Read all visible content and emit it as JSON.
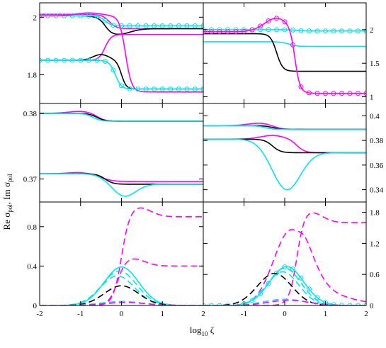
{
  "figure": {
    "xlabel": {
      "base": "log",
      "sub": "10",
      "var": " ζ"
    },
    "ylabel": {
      "re": "Re σ",
      "re_sub": "pol",
      "sep": ", Im σ",
      "im_sub": "pol"
    }
  },
  "chart_data": [
    {
      "id": "top-left",
      "type": "line",
      "xlim": [
        -2,
        2
      ],
      "ylim": [
        1.7,
        2.05
      ],
      "xticks": [
        -2,
        -1,
        0,
        1,
        2
      ],
      "yticks": [
        1.8,
        2
      ],
      "ytick_labels": [
        "1.8",
        "2"
      ],
      "ytick_side": "left",
      "curves": [
        {
          "color": "magenta",
          "dash": false,
          "markers": false,
          "y0": 2.01,
          "y1": 1.96,
          "center": -0.3,
          "width": 0.18
        },
        {
          "color": "black",
          "dash": false,
          "markers": false,
          "y0": 2.005,
          "y1": 1.96,
          "center": -0.4,
          "width": 0.15,
          "dip": -0.02,
          "dip_c": -0.1,
          "dip_w": 0.3
        },
        {
          "color": "cyan",
          "dash": false,
          "markers": true,
          "y0": 2.005,
          "y1": 1.97,
          "center": -0.4,
          "width": 0.15
        },
        {
          "color": "magenta",
          "dash": false,
          "markers": false,
          "y0": 1.85,
          "y1": 1.94,
          "center": -0.4,
          "width": 0.15
        },
        {
          "color": "magenta",
          "dash": false,
          "markers": false,
          "y0": 2.005,
          "y1": 1.74,
          "center": 0.1,
          "width": 0.15,
          "bump": 0.01,
          "bump_c": -0.8,
          "bump_w": 0.3
        },
        {
          "color": "black",
          "dash": false,
          "markers": false,
          "y0": 1.85,
          "y1": 1.75,
          "center": 0.0,
          "width": 0.12,
          "bump": 0.02,
          "bump_c": -0.5,
          "bump_w": 0.2
        },
        {
          "color": "cyan",
          "dash": false,
          "markers": true,
          "y0": 1.85,
          "y1": 1.75,
          "center": -0.15,
          "width": 0.15
        }
      ]
    },
    {
      "id": "top-right",
      "type": "line",
      "xlim": [
        -2,
        2
      ],
      "ylim": [
        0.9,
        2.4
      ],
      "xticks": [
        -2,
        -1,
        0,
        1,
        2
      ],
      "yticks": [
        1,
        1.5,
        2
      ],
      "ytick_labels": [
        "1",
        "1.5",
        "2"
      ],
      "ytick_side": "right",
      "curves": [
        {
          "color": "cyan",
          "dash": false,
          "markers": true,
          "y0": 2.0,
          "y1": 1.98,
          "center": 0.3,
          "width": 0.2
        },
        {
          "color": "cyan",
          "dash": false,
          "markers": false,
          "y0": 1.82,
          "y1": 1.75,
          "center": 0.1,
          "width": 0.2
        },
        {
          "color": "black",
          "dash": false,
          "markers": false,
          "y0": 1.94,
          "y1": 1.38,
          "center": -0.2,
          "width": 0.15
        },
        {
          "color": "magenta",
          "dash": false,
          "markers": true,
          "y0": 1.97,
          "y1": 1.05,
          "center": 0.25,
          "width": 0.12,
          "bump": 0.2,
          "bump_c": -0.2,
          "bump_w": 0.3
        }
      ]
    },
    {
      "id": "mid-left",
      "type": "line",
      "xlim": [
        -2,
        2
      ],
      "ylim": [
        0.3665,
        0.3815
      ],
      "xticks": [
        -2,
        -1,
        0,
        1,
        2
      ],
      "yticks": [
        0.37,
        0.38
      ],
      "ytick_labels": [
        "0.37",
        "0.38"
      ],
      "ytick_side": "left",
      "curves": [
        {
          "color": "magenta",
          "dash": false,
          "markers": false,
          "y0": 0.38,
          "y1": 0.3788,
          "center": -0.6,
          "width": 0.2,
          "bump": 0.0003,
          "bump_c": -1.0,
          "bump_w": 0.3
        },
        {
          "color": "black",
          "dash": false,
          "markers": false,
          "y0": 0.38,
          "y1": 0.3788,
          "center": -0.6,
          "width": 0.2
        },
        {
          "color": "cyan",
          "dash": false,
          "markers": false,
          "y0": 0.38,
          "y1": 0.3788,
          "center": -0.7,
          "width": 0.2
        },
        {
          "color": "magenta",
          "dash": false,
          "markers": false,
          "y0": 0.3708,
          "y1": 0.3696,
          "center": -0.5,
          "width": 0.3,
          "bump": 0.0002,
          "bump_c": -1.0,
          "bump_w": 0.3
        },
        {
          "color": "black",
          "dash": false,
          "markers": false,
          "y0": 0.3708,
          "y1": 0.3692,
          "center": -0.4,
          "width": 0.2
        },
        {
          "color": "cyan",
          "dash": false,
          "markers": false,
          "y0": 0.3708,
          "y1": 0.3692,
          "center": 0.0,
          "width": 0.3,
          "dip": -0.0025,
          "dip_c": 0.0,
          "dip_w": 0.3
        }
      ]
    },
    {
      "id": "mid-right",
      "type": "line",
      "xlim": [
        -2,
        2
      ],
      "ylim": [
        0.33,
        0.41
      ],
      "xticks": [
        -2,
        -1,
        0,
        1,
        2
      ],
      "yticks": [
        0.34,
        0.36,
        0.38,
        0.4
      ],
      "ytick_labels": [
        "0.34",
        "0.36",
        "0.38",
        "0.4"
      ],
      "ytick_side": "right",
      "curves": [
        {
          "color": "magenta",
          "dash": false,
          "markers": false,
          "y0": 0.392,
          "y1": 0.389,
          "center": -0.3,
          "width": 0.2,
          "bump": 0.002,
          "bump_c": -0.6,
          "bump_w": 0.3
        },
        {
          "color": "black",
          "dash": false,
          "markers": false,
          "y0": 0.392,
          "y1": 0.389,
          "center": -0.3,
          "width": 0.2
        },
        {
          "color": "cyan",
          "dash": false,
          "markers": false,
          "y0": 0.392,
          "y1": 0.389,
          "center": -0.5,
          "width": 0.2
        },
        {
          "color": "magenta",
          "dash": false,
          "markers": false,
          "y0": 0.381,
          "y1": 0.37,
          "center": 0.3,
          "width": 0.2,
          "bump": 0.003,
          "bump_c": -0.3,
          "bump_w": 0.3
        },
        {
          "color": "black",
          "dash": false,
          "markers": false,
          "y0": 0.381,
          "y1": 0.37,
          "center": -0.3,
          "width": 0.2
        },
        {
          "color": "cyan",
          "dash": false,
          "markers": false,
          "y0": 0.381,
          "y1": 0.37,
          "center": 0.0,
          "width": 0.3,
          "dip": -0.035,
          "dip_c": 0.0,
          "dip_w": 0.35
        }
      ]
    },
    {
      "id": "bottom-left",
      "type": "line",
      "xlim": [
        -2,
        2
      ],
      "ylim": [
        0,
        1.05
      ],
      "xticks": [
        -2,
        -1,
        0,
        1,
        2
      ],
      "yticks": [
        0,
        0.4,
        0.8
      ],
      "ytick_labels": [
        "0",
        "0.4",
        "0.8"
      ],
      "ytick_side": "left",
      "xtick_labels": [
        "-2",
        "-1",
        "0",
        "1",
        "2"
      ],
      "curves": [
        {
          "color": "magenta",
          "dash": true,
          "markers": false,
          "y0": 0,
          "y1": 0.9,
          "center": 0.0,
          "width": 0.2,
          "peak": 0.1,
          "peak_c": 0.4,
          "peak_w": 0.3
        },
        {
          "color": "magenta",
          "dash": true,
          "markers": false,
          "y0": 0,
          "y1": 0.4,
          "center": -0.1,
          "width": 0.2,
          "peak": 0.08,
          "peak_c": 0.25,
          "peak_w": 0.3
        },
        {
          "color": "cyan",
          "dash": false,
          "markers": false,
          "gauss": true,
          "amp": 0.39,
          "gc": 0.0,
          "gw": 0.42
        },
        {
          "color": "cyan",
          "dash": true,
          "markers": false,
          "gauss": true,
          "amp": 0.35,
          "gc": -0.05,
          "gw": 0.42
        },
        {
          "color": "cyan",
          "dash": true,
          "markers": false,
          "gauss": true,
          "amp": 0.3,
          "gc": -0.1,
          "gw": 0.42
        },
        {
          "color": "black",
          "dash": true,
          "markers": false,
          "gauss": true,
          "amp": 0.2,
          "gc": 0.0,
          "gw": 0.42
        },
        {
          "color": "cyan",
          "dash": true,
          "markers": false,
          "gauss": true,
          "amp": 0.04,
          "gc": 0.0,
          "gw": 0.5
        },
        {
          "color": "magenta",
          "dash": true,
          "markers": false,
          "gauss": true,
          "amp": 0.03,
          "gc": 0.1,
          "gw": 0.5
        }
      ]
    },
    {
      "id": "bottom-right",
      "type": "line",
      "xlim": [
        -2,
        2
      ],
      "ylim": [
        0,
        2.0
      ],
      "xticks": [
        -2,
        -1,
        0,
        1,
        2
      ],
      "yticks": [
        0,
        0.6,
        1.2,
        1.8
      ],
      "ytick_labels": [
        "0",
        "0.6",
        "1.2",
        "1.8"
      ],
      "ytick_side": "right",
      "xtick_labels": [
        "-2",
        "-1",
        "0",
        "1",
        "2"
      ],
      "curves": [
        {
          "color": "magenta",
          "dash": true,
          "markers": false,
          "y0": 0,
          "y1": 1.6,
          "center": 0.3,
          "width": 0.18,
          "peak": 0.22,
          "peak_c": 0.6,
          "peak_w": 0.3
        },
        {
          "color": "magenta",
          "dash": true,
          "markers": false,
          "gauss": true,
          "amp": 1.45,
          "gc": 0.15,
          "gw": 0.42,
          "tail": 0.4,
          "tail_c": 0.4
        },
        {
          "color": "cyan",
          "dash": false,
          "markers": true,
          "gauss": true,
          "amp": 0.75,
          "gc": 0.05,
          "gw": 0.42
        },
        {
          "color": "cyan",
          "dash": true,
          "markers": false,
          "gauss": true,
          "amp": 0.72,
          "gc": 0.0,
          "gw": 0.4
        },
        {
          "color": "cyan",
          "dash": true,
          "markers": false,
          "gauss": true,
          "amp": 0.65,
          "gc": -0.05,
          "gw": 0.4
        },
        {
          "color": "black",
          "dash": true,
          "markers": false,
          "gauss": true,
          "amp": 0.62,
          "gc": -0.25,
          "gw": 0.42
        },
        {
          "color": "cyan",
          "dash": true,
          "markers": false,
          "gauss": true,
          "amp": 0.12,
          "gc": 0.0,
          "gw": 0.5
        },
        {
          "color": "magenta",
          "dash": true,
          "markers": false,
          "gauss": true,
          "amp": 0.1,
          "gc": 0.1,
          "gw": 0.5
        }
      ]
    }
  ]
}
